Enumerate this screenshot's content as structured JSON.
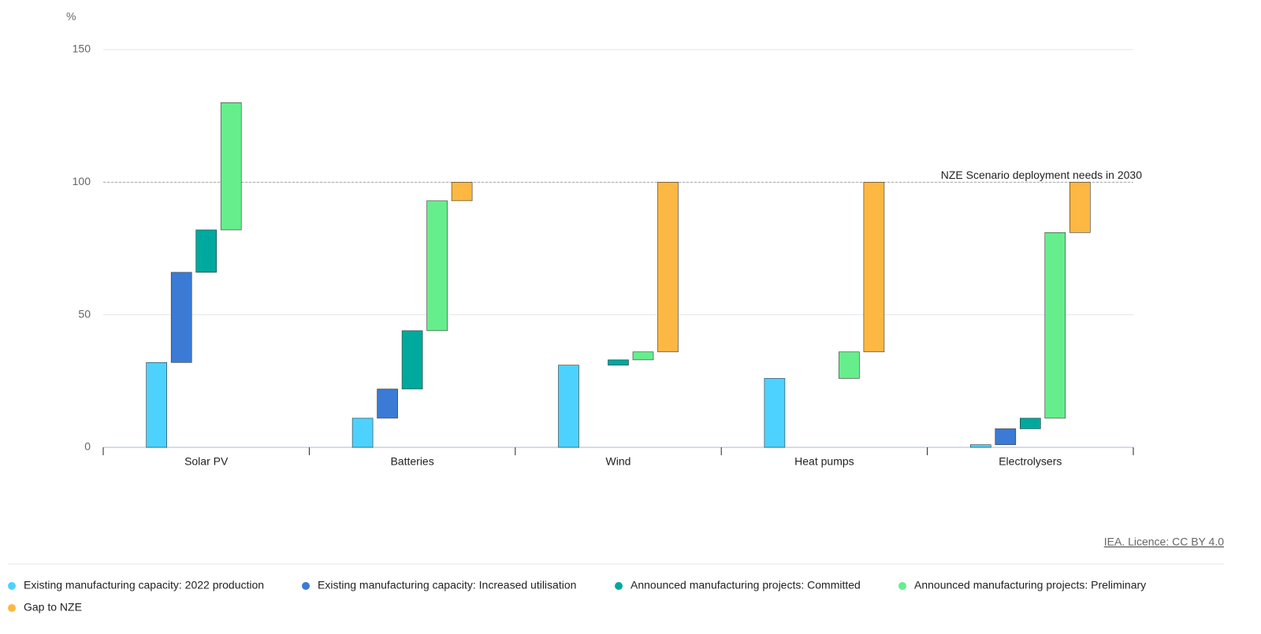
{
  "chart_data": {
    "type": "waterfall",
    "y_unit": "%",
    "categories": [
      "Solar PV",
      "Batteries",
      "Wind",
      "Heat pumps",
      "Electrolysers"
    ],
    "series": [
      {
        "name": "Existing manufacturing capacity: 2022 production",
        "color": "#4dd2ff",
        "values": [
          32,
          11,
          31,
          26,
          1
        ]
      },
      {
        "name": "Existing manufacturing capacity: Increased utilisation",
        "color": "#3b7bd6",
        "values": [
          34,
          11,
          null,
          null,
          6
        ]
      },
      {
        "name": "Announced manufacturing projects: Committed",
        "color": "#00a99d",
        "values": [
          16,
          22,
          2,
          null,
          4
        ]
      },
      {
        "name": "Announced manufacturing projects: Preliminary",
        "color": "#66ee8d",
        "values": [
          48,
          49,
          3,
          10,
          70
        ]
      },
      {
        "name": "Gap to NZE",
        "color": "#fdb843",
        "values": [
          null,
          7,
          64,
          64,
          19
        ]
      }
    ],
    "ylim": [
      0,
      150
    ],
    "yticks": [
      0,
      50,
      100,
      150
    ],
    "grid": true,
    "reference_line": {
      "value": 100,
      "label": "NZE Scenario deployment needs in 2030"
    },
    "source": "IEA. Licence: CC BY 4.0"
  }
}
